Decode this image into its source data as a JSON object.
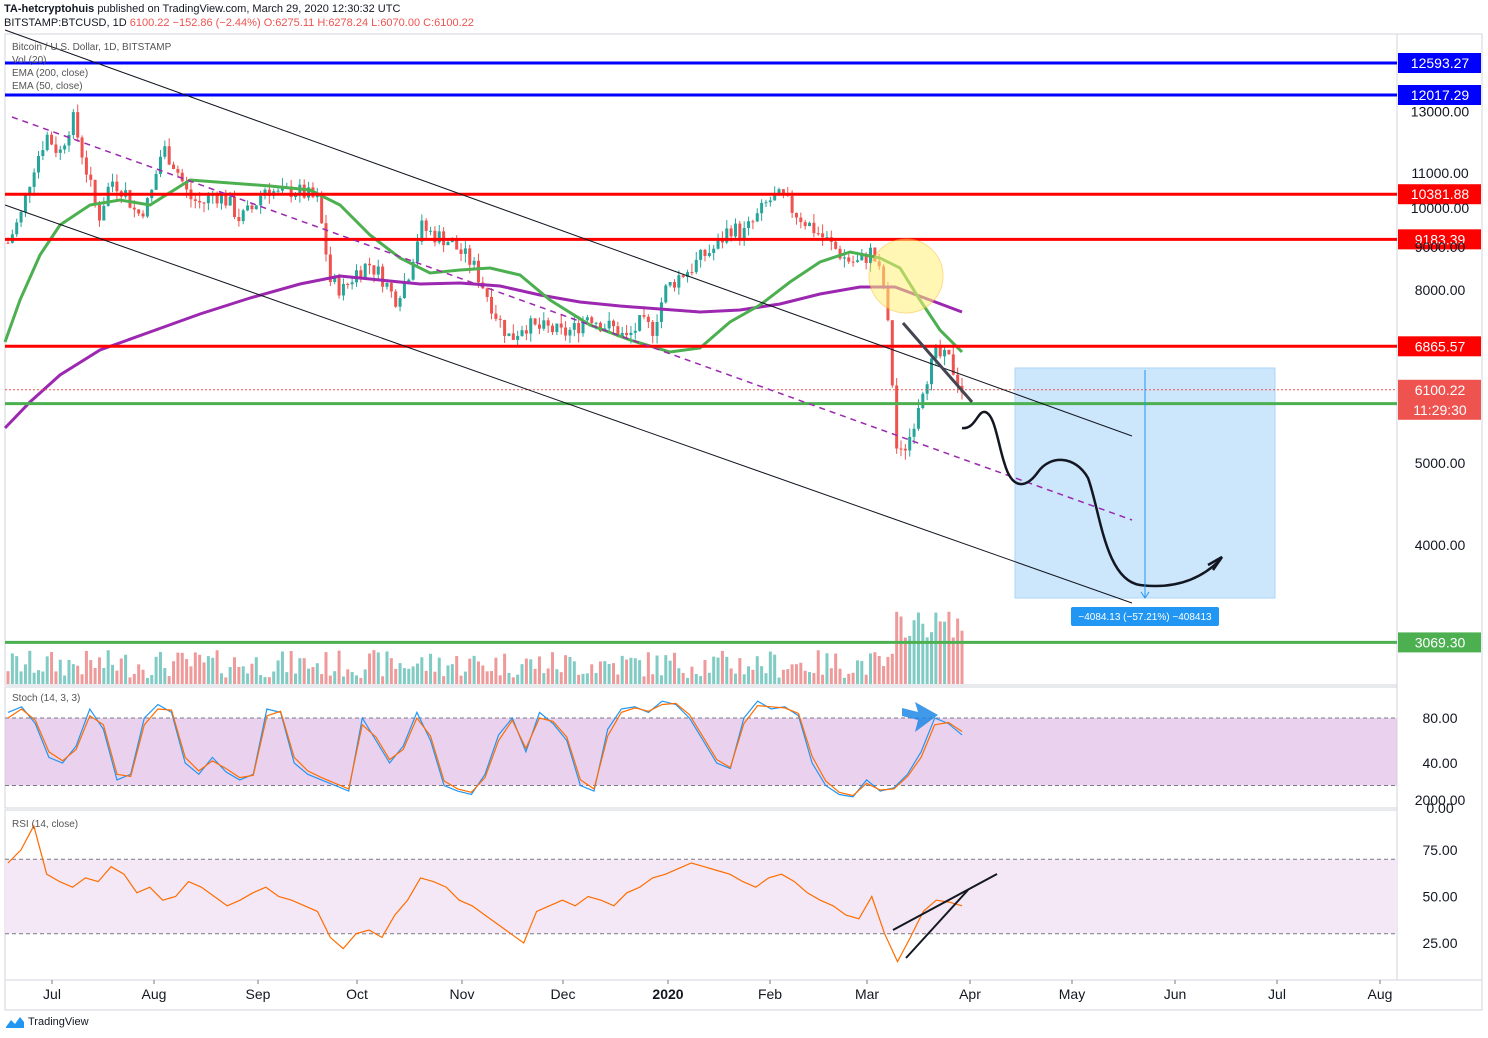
{
  "header": {
    "author": "TA-hetcryptohuis",
    "published": "published on TradingView.com, March 29, 2020 12:30:32 UTC",
    "symbol": "BITSTAMP:BTCUSD, 1D",
    "last": "6100.22",
    "change": "−152.86 (−2.44%)",
    "open": "O:6275.11",
    "high": "H:6278.24",
    "low": "L:6070.00",
    "close": "C:6100.22"
  },
  "legend": {
    "title": "Bitcoin / U.S. Dollar, 1D, BITSTAMP",
    "vol": "Vol (20)",
    "ema200": "EMA (200, close)",
    "ema50": "EMA (50, close)"
  },
  "stoch_label": "Stoch (14, 3, 3)",
  "rsi_label": "RSI (14, close)",
  "footer": {
    "brand": "TradingView"
  },
  "chart_data": [
    {
      "type": "candlestick",
      "title": "Bitcoin / U.S. Dollar, 1D, BITSTAMP",
      "ylim": [
        1500,
        13200
      ],
      "yticks": [
        "13000.00",
        "11000.00",
        "10000.00",
        "9000.00",
        "8000.00",
        "5000.00",
        "4000.00",
        "2000.00"
      ],
      "xticks": [
        "Jul",
        "Aug",
        "Sep",
        "Oct",
        "Nov",
        "Dec",
        "2020",
        "Feb",
        "Mar",
        "Apr",
        "May",
        "Jun",
        "Jul",
        "Aug"
      ],
      "price_close_path": [
        9100,
        9800,
        11200,
        12200,
        11600,
        12800,
        11200,
        9700,
        10800,
        10500,
        9800,
        10200,
        11800,
        11200,
        10300,
        10100,
        10400,
        10200,
        9700,
        10000,
        10600,
        10350,
        10500,
        10400,
        10200,
        8200,
        8000,
        8400,
        8600,
        8300,
        7800,
        8300,
        9500,
        9300,
        9200,
        8900,
        8600,
        8000,
        7400,
        7000,
        7300,
        7200,
        7200,
        7100,
        7200,
        7500,
        7300,
        7200,
        7000,
        7300,
        7200,
        8000,
        8300,
        8500,
        8800,
        9000,
        9500,
        9300,
        9700,
        10200,
        10300,
        9900,
        9600,
        9300,
        9000,
        8700,
        8600,
        8900,
        8000,
        5000,
        5400,
        6200,
        6700,
        6600,
        6100
      ],
      "annotations": [
        "12593.27",
        "12017.29",
        "10381.88",
        "9183.39",
        "6865.57",
        "6100.22",
        "11:29:30",
        "5873.91",
        "3069.30",
        "−4084.13 (−57.21%) −408413"
      ],
      "horizontal_levels": [
        {
          "value": 12593.27,
          "label": "12593.27",
          "color": "#0000ff"
        },
        {
          "value": 12017.29,
          "label": "12017.29",
          "color": "#0000ff"
        },
        {
          "value": 10381.88,
          "label": "10381.88",
          "color": "#ff0000"
        },
        {
          "value": 9183.39,
          "label": "9183.39",
          "color": "#ff0000"
        },
        {
          "value": 6865.57,
          "label": "6865.57",
          "color": "#ff0000"
        },
        {
          "value": 5873.91,
          "label": "5873.91",
          "color": "#4caf50"
        },
        {
          "value": 3069.3,
          "label": "3069.30",
          "color": "#4caf50"
        }
      ],
      "last_price": {
        "value": 6100.22,
        "label": "6100.22",
        "countdown": "11:29:30",
        "color": "#ef5350"
      },
      "series": [
        {
          "name": "EMA (200, close)",
          "color": "#9c27b0"
        },
        {
          "name": "EMA (50, close)",
          "color": "#4caf50"
        }
      ],
      "measure": {
        "label": "−4084.13 (−57.21%) −408413",
        "from": 7150,
        "to": 3069.3,
        "color": "#2196f3"
      }
    },
    {
      "type": "line",
      "title": "Stoch (14, 3, 3)",
      "ylim": [
        0,
        100
      ],
      "yticks": [
        "80.00",
        "40.00",
        "0.00"
      ],
      "band": [
        20,
        80
      ],
      "series": [
        {
          "name": "%K",
          "color": "#2196f3",
          "values": [
            85,
            90,
            75,
            45,
            40,
            55,
            88,
            70,
            25,
            30,
            80,
            92,
            85,
            40,
            30,
            45,
            32,
            25,
            30,
            88,
            85,
            40,
            30,
            25,
            20,
            15,
            80,
            60,
            40,
            55,
            85,
            60,
            20,
            15,
            12,
            30,
            65,
            80,
            50,
            85,
            75,
            60,
            20,
            15,
            70,
            88,
            90,
            85,
            95,
            92,
            80,
            60,
            40,
            35,
            80,
            95,
            88,
            90,
            82,
            40,
            20,
            12,
            10,
            25,
            15,
            18,
            30,
            50,
            80,
            75,
            65
          ]
        },
        {
          "name": "%D",
          "color": "#ff6d00",
          "values": [
            80,
            88,
            78,
            50,
            42,
            52,
            82,
            74,
            30,
            28,
            74,
            88,
            87,
            45,
            33,
            42,
            35,
            27,
            29,
            82,
            86,
            45,
            33,
            27,
            22,
            17,
            74,
            63,
            43,
            52,
            80,
            64,
            24,
            17,
            14,
            27,
            60,
            78,
            53,
            80,
            77,
            63,
            25,
            17,
            64,
            85,
            89,
            86,
            92,
            93,
            83,
            63,
            43,
            36,
            75,
            91,
            90,
            89,
            84,
            46,
            24,
            14,
            11,
            22,
            16,
            17,
            28,
            45,
            74,
            76,
            68
          ]
        }
      ]
    },
    {
      "type": "line",
      "title": "RSI (14, close)",
      "ylim": [
        10,
        90
      ],
      "yticks": [
        "75.00",
        "50.00",
        "25.00"
      ],
      "band": [
        30,
        70
      ],
      "series": [
        {
          "name": "RSI",
          "color": "#ff6d00",
          "values": [
            68,
            75,
            88,
            62,
            58,
            55,
            60,
            58,
            66,
            62,
            52,
            55,
            48,
            50,
            58,
            55,
            50,
            45,
            48,
            52,
            55,
            50,
            48,
            45,
            42,
            28,
            22,
            30,
            32,
            28,
            40,
            48,
            60,
            58,
            55,
            48,
            45,
            40,
            35,
            30,
            25,
            42,
            45,
            48,
            45,
            50,
            48,
            45,
            52,
            55,
            60,
            62,
            65,
            68,
            66,
            64,
            62,
            58,
            55,
            60,
            62,
            58,
            52,
            48,
            45,
            40,
            38,
            50,
            30,
            15,
            28,
            42,
            48,
            47,
            45
          ]
        }
      ]
    }
  ]
}
